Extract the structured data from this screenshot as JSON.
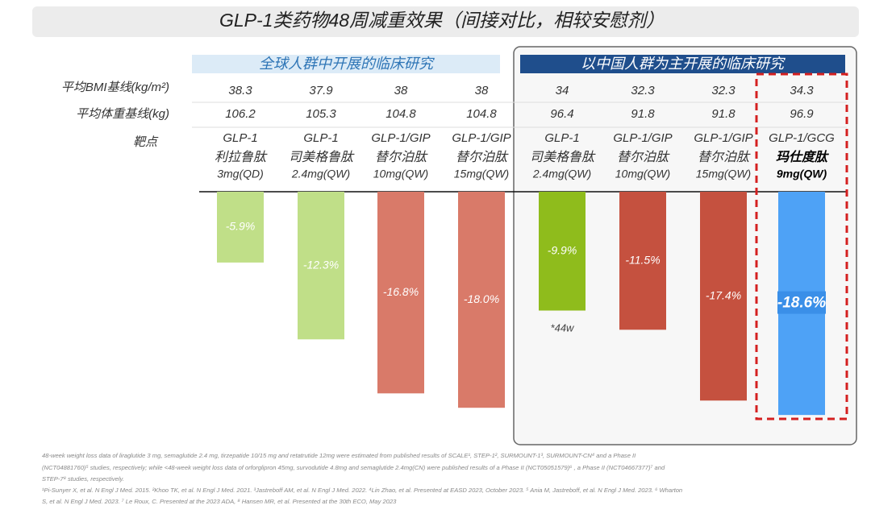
{
  "chart_data": {
    "type": "bar",
    "title": "GLP-1类药物48周减重效果（间接对比，相较安慰剂）",
    "groups": [
      "全球人群中开展的临床研究",
      "以中国人群为主开展的临床研究"
    ],
    "row_labels": [
      "平均BMI基线(kg/m²)",
      "平均体重基线(kg)",
      "靶点"
    ],
    "bmi": [
      38.3,
      37.9,
      38,
      38,
      34,
      32.3,
      32.3,
      34.3
    ],
    "weight": [
      106.2,
      105.3,
      104.8,
      104.8,
      96.4,
      91.8,
      91.8,
      96.9
    ],
    "targets": [
      "GLP-1",
      "GLP-1",
      "GLP-1/GIP",
      "GLP-1/GIP",
      "GLP-1",
      "GLP-1/GIP",
      "GLP-1/GIP",
      "GLP-1/GCG"
    ],
    "categories": [
      "利拉鲁肽",
      "司美格鲁肽",
      "替尔泊肽",
      "替尔泊肽",
      "司美格鲁肽",
      "替尔泊肽",
      "替尔泊肽",
      "玛仕度肽"
    ],
    "doses": [
      "3mg(QD)",
      "2.4mg(QW)",
      "10mg(QW)",
      "15mg(QW)",
      "2.4mg(QW)",
      "10mg(QW)",
      "15mg(QW)",
      "9mg(QW)"
    ],
    "values": [
      -5.9,
      -12.3,
      -16.8,
      -18.0,
      -9.9,
      -11.5,
      -17.4,
      -18.6
    ],
    "value_labels": [
      "-5.9%",
      "-12.3%",
      "-16.8%",
      "-18.0%",
      "-9.9%",
      "-11.5%",
      "-17.4%",
      "-18.6%"
    ],
    "colors": [
      "#c0df88",
      "#c0df88",
      "#d97a69",
      "#d97a69",
      "#8fbc1c",
      "#c5513f",
      "#c5513f",
      "#4ea2f6"
    ],
    "annotation": "*44w",
    "footnotes": [
      "48-week weight loss data of liraglutide 3 mg, semaglutide 2.4 mg, tirzepatide 10/15 mg and retatrutide 12mg were estimated from published results of SCALE¹, STEP-1², SURMOUNT-1³, SURMOUNT-CN⁴ and a Phase II",
      "(NCT04881760)⁵ studies, respectively; while <48-week weight loss data of orforglipron 45mg, survodutide 4.8mg and semaglutide 2.4mg(CN) were published results of a Phase II (NCT05051579)⁶ , a Phase II (NCT04667377)⁷ and",
      "STEP-7⁸ studies, respectively.",
      "¹Pi-Sunyer X, et al. N Engl J Med. 2015. ²Khoo TK, et al. N Engl J Med. 2021. ³Jastreboff AM, et al. N Engl J Med. 2022. ⁴Lin Zhao, et al. Presented at EASD 2023, October 2023. ⁵ Ania M, Jastreboff, et al. N Engl J Med. 2023. ⁶ Wharton",
      "S, et al. N Engl J Med. 2023. ⁷ Le Roux, C. Presented at the 2023 ADA, ⁸ Hansen MR, et al. Presented at the 30th ECO, May 2023"
    ]
  }
}
